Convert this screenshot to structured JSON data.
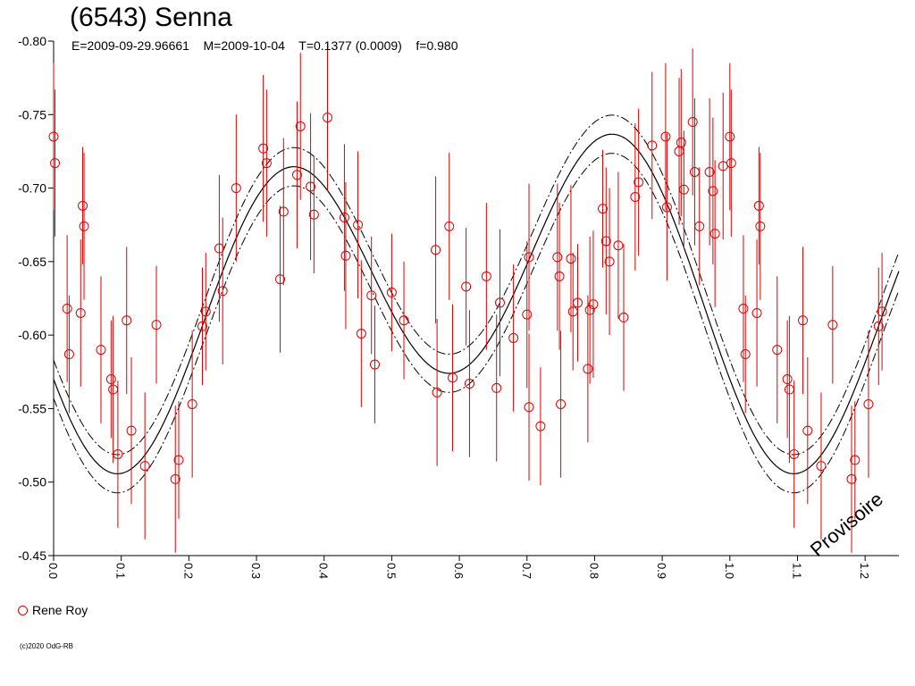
{
  "chart_data": {
    "type": "scatter",
    "title": "(6543) Senna",
    "subtitle": "E=2009-09-29.96661    M=2009-10-04    T=0.1377 (0.0009)    f=0.980",
    "xlim": [
      0,
      1.25
    ],
    "ylim": [
      -0.8,
      -0.45
    ],
    "y_inverted": true,
    "x_ticks": [
      "0.0",
      "0.1",
      "0.2",
      "0.3",
      "0.4",
      "0.5",
      "0.6",
      "0.7",
      "0.8",
      "0.9",
      "1.0",
      "1.1",
      "1.2"
    ],
    "y_ticks": [
      "-0.80",
      "-0.75",
      "-0.70",
      "-0.65",
      "-0.60",
      "-0.55",
      "-0.50",
      "-0.45"
    ],
    "legend": [
      "Rene Roy"
    ],
    "marker_color": "#e00000",
    "curve_color": "#000000",
    "series": [
      {
        "name": "Rene Roy",
        "points": [
          [
            0.0,
            -0.735,
            0.05
          ],
          [
            0.002,
            -0.717,
            0.05
          ],
          [
            0.02,
            -0.618,
            0.05
          ],
          [
            0.023,
            -0.587,
            0.04
          ],
          [
            0.04,
            -0.615,
            0.05
          ],
          [
            0.043,
            -0.688,
            0.04
          ],
          [
            0.045,
            -0.674,
            0.05
          ],
          [
            0.07,
            -0.59,
            0.05
          ],
          [
            0.085,
            -0.57,
            0.04
          ],
          [
            0.088,
            -0.563,
            0.05
          ],
          [
            0.095,
            -0.519,
            0.05
          ],
          [
            0.108,
            -0.61,
            0.05
          ],
          [
            0.115,
            -0.535,
            0.05
          ],
          [
            0.135,
            -0.511,
            0.05
          ],
          [
            0.152,
            -0.607,
            0.04
          ],
          [
            0.18,
            -0.502,
            0.05
          ],
          [
            0.185,
            -0.515,
            0.04
          ],
          [
            0.205,
            -0.553,
            0.05
          ],
          [
            0.22,
            -0.606,
            0.04
          ],
          [
            0.225,
            -0.616,
            0.04
          ],
          [
            0.245,
            -0.659,
            0.05
          ],
          [
            0.25,
            -0.63,
            0.05
          ],
          [
            0.27,
            -0.7,
            0.05
          ],
          [
            0.31,
            -0.727,
            0.05
          ],
          [
            0.315,
            -0.717,
            0.05
          ],
          [
            0.335,
            -0.638,
            0.05
          ],
          [
            0.34,
            -0.684,
            0.05
          ],
          [
            0.36,
            -0.709,
            0.05
          ],
          [
            0.365,
            -0.742,
            0.05
          ],
          [
            0.38,
            -0.701,
            0.05
          ],
          [
            0.385,
            -0.682,
            0.04
          ],
          [
            0.405,
            -0.748,
            0.05
          ],
          [
            0.43,
            -0.68,
            0.05
          ],
          [
            0.432,
            -0.654,
            0.05
          ],
          [
            0.45,
            -0.675,
            0.05
          ],
          [
            0.455,
            -0.601,
            0.05
          ],
          [
            0.47,
            -0.627,
            0.04
          ],
          [
            0.475,
            -0.58,
            0.04
          ],
          [
            0.5,
            -0.629,
            0.04
          ],
          [
            0.518,
            -0.61,
            0.04
          ],
          [
            0.565,
            -0.658,
            0.05
          ],
          [
            0.567,
            -0.561,
            0.05
          ],
          [
            0.585,
            -0.674,
            0.05
          ],
          [
            0.59,
            -0.571,
            0.05
          ],
          [
            0.61,
            -0.633,
            0.04
          ],
          [
            0.615,
            -0.567,
            0.05
          ],
          [
            0.64,
            -0.64,
            0.05
          ],
          [
            0.655,
            -0.564,
            0.05
          ],
          [
            0.66,
            -0.622,
            0.05
          ],
          [
            0.68,
            -0.598,
            0.05
          ],
          [
            0.7,
            -0.614,
            0.05
          ],
          [
            0.703,
            -0.653,
            0.05
          ],
          [
            0.703,
            -0.551,
            0.05
          ],
          [
            0.72,
            -0.538,
            0.04
          ],
          [
            0.745,
            -0.653,
            0.05
          ],
          [
            0.748,
            -0.64,
            0.05
          ],
          [
            0.75,
            -0.553,
            0.05
          ],
          [
            0.765,
            -0.652,
            0.05
          ],
          [
            0.768,
            -0.616,
            0.04
          ],
          [
            0.775,
            -0.622,
            0.04
          ],
          [
            0.79,
            -0.577,
            0.05
          ],
          [
            0.793,
            -0.617,
            0.05
          ],
          [
            0.798,
            -0.621,
            0.05
          ],
          [
            0.812,
            -0.686,
            0.04
          ],
          [
            0.817,
            -0.664,
            0.05
          ],
          [
            0.822,
            -0.65,
            0.05
          ],
          [
            0.835,
            -0.661,
            0.05
          ],
          [
            0.843,
            -0.612,
            0.05
          ],
          [
            0.86,
            -0.694,
            0.05
          ],
          [
            0.865,
            -0.704,
            0.05
          ],
          [
            0.885,
            -0.729,
            0.05
          ],
          [
            0.905,
            -0.735,
            0.05
          ],
          [
            0.907,
            -0.687,
            0.05
          ],
          [
            0.925,
            -0.725,
            0.05
          ],
          [
            0.928,
            -0.731,
            0.05
          ],
          [
            0.932,
            -0.699,
            0.04
          ],
          [
            0.945,
            -0.745,
            0.05
          ],
          [
            0.948,
            -0.711,
            0.05
          ],
          [
            0.955,
            -0.674,
            0.04
          ],
          [
            0.97,
            -0.711,
            0.05
          ],
          [
            0.975,
            -0.698,
            0.05
          ],
          [
            0.978,
            -0.669,
            0.05
          ],
          [
            0.99,
            -0.715,
            0.05
          ],
          [
            1.0,
            -0.735,
            0.05
          ],
          [
            1.002,
            -0.717,
            0.05
          ],
          [
            1.02,
            -0.618,
            0.05
          ],
          [
            1.023,
            -0.587,
            0.04
          ],
          [
            1.04,
            -0.615,
            0.05
          ],
          [
            1.043,
            -0.688,
            0.04
          ],
          [
            1.045,
            -0.674,
            0.05
          ],
          [
            1.07,
            -0.59,
            0.05
          ],
          [
            1.085,
            -0.57,
            0.04
          ],
          [
            1.088,
            -0.563,
            0.05
          ],
          [
            1.095,
            -0.519,
            0.05
          ],
          [
            1.108,
            -0.61,
            0.05
          ],
          [
            1.115,
            -0.535,
            0.05
          ],
          [
            1.135,
            -0.511,
            0.05
          ],
          [
            1.152,
            -0.607,
            0.04
          ],
          [
            1.18,
            -0.502,
            0.05
          ],
          [
            1.185,
            -0.515,
            0.04
          ],
          [
            1.205,
            -0.553,
            0.05
          ],
          [
            1.22,
            -0.606,
            0.04
          ],
          [
            1.225,
            -0.616,
            0.04
          ]
        ]
      }
    ],
    "fit_curve": {
      "period": 0.5,
      "min_offset": 0.2,
      "upper_band": 0.013,
      "lower_band": 0.013
    }
  },
  "legend_label": "Rene Roy",
  "copyright": "(c)2020 OdG-RB",
  "watermark": "Provisoire"
}
